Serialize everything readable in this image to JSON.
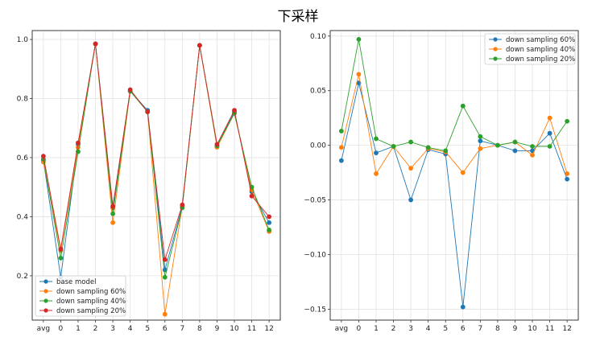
{
  "title": "下采样",
  "chart_data": [
    {
      "type": "line",
      "categories": [
        "avg",
        "0",
        "1",
        "2",
        "3",
        "4",
        "5",
        "6",
        "7",
        "8",
        "9",
        "10",
        "11",
        "12"
      ],
      "ylim": [
        0.05,
        1.03
      ],
      "yticks": [
        "0.2",
        "0.4",
        "0.6",
        "0.8",
        "1.0"
      ],
      "grid": true,
      "legend_position": "lower-left",
      "series": [
        {
          "name": "base model",
          "color": "#1f77b4",
          "values": [
            0.59,
            0.195,
            0.645,
            0.985,
            0.43,
            0.825,
            0.76,
            0.22,
            0.435,
            0.98,
            0.64,
            0.755,
            0.485,
            0.38
          ]
        },
        {
          "name": "down sampling 60%",
          "color": "#ff7f0e",
          "values": [
            0.585,
            0.285,
            0.635,
            0.985,
            0.38,
            0.825,
            0.755,
            0.07,
            0.435,
            0.98,
            0.635,
            0.75,
            0.49,
            0.35
          ]
        },
        {
          "name": "down sampling 40%",
          "color": "#2ca02c",
          "values": [
            0.595,
            0.26,
            0.62,
            0.985,
            0.41,
            0.825,
            0.755,
            0.195,
            0.43,
            0.98,
            0.64,
            0.75,
            0.5,
            0.355
          ]
        },
        {
          "name": "down sampling 20%",
          "color": "#d62728",
          "values": [
            0.605,
            0.29,
            0.65,
            0.985,
            0.435,
            0.83,
            0.755,
            0.255,
            0.44,
            0.98,
            0.645,
            0.76,
            0.47,
            0.4
          ]
        }
      ]
    },
    {
      "type": "line",
      "categories": [
        "avg",
        "0",
        "1",
        "2",
        "3",
        "4",
        "5",
        "6",
        "7",
        "8",
        "9",
        "10",
        "11",
        "12"
      ],
      "ylim": [
        -0.16,
        0.105
      ],
      "yticks": [
        "−0.15",
        "−0.10",
        "−0.05",
        "0.00",
        "0.05",
        "0.10"
      ],
      "grid": true,
      "legend_position": "top-right",
      "series": [
        {
          "name": "down sampling 60%",
          "color": "#1f77b4",
          "values": [
            -0.014,
            0.057,
            -0.007,
            -0.001,
            -0.05,
            -0.004,
            -0.008,
            -0.148,
            0.004,
            0.0,
            -0.005,
            -0.005,
            0.011,
            -0.031
          ]
        },
        {
          "name": "down sampling 40%",
          "color": "#ff7f0e",
          "values": [
            -0.002,
            0.065,
            -0.026,
            -0.001,
            -0.021,
            -0.003,
            -0.006,
            -0.025,
            -0.003,
            0.0,
            0.003,
            -0.009,
            0.025,
            -0.026
          ]
        },
        {
          "name": "down sampling 20%",
          "color": "#2ca02c",
          "values": [
            0.013,
            0.097,
            0.006,
            -0.001,
            0.003,
            -0.002,
            -0.005,
            0.036,
            0.008,
            0.0,
            0.003,
            -0.001,
            -0.001,
            0.022
          ]
        }
      ]
    }
  ]
}
